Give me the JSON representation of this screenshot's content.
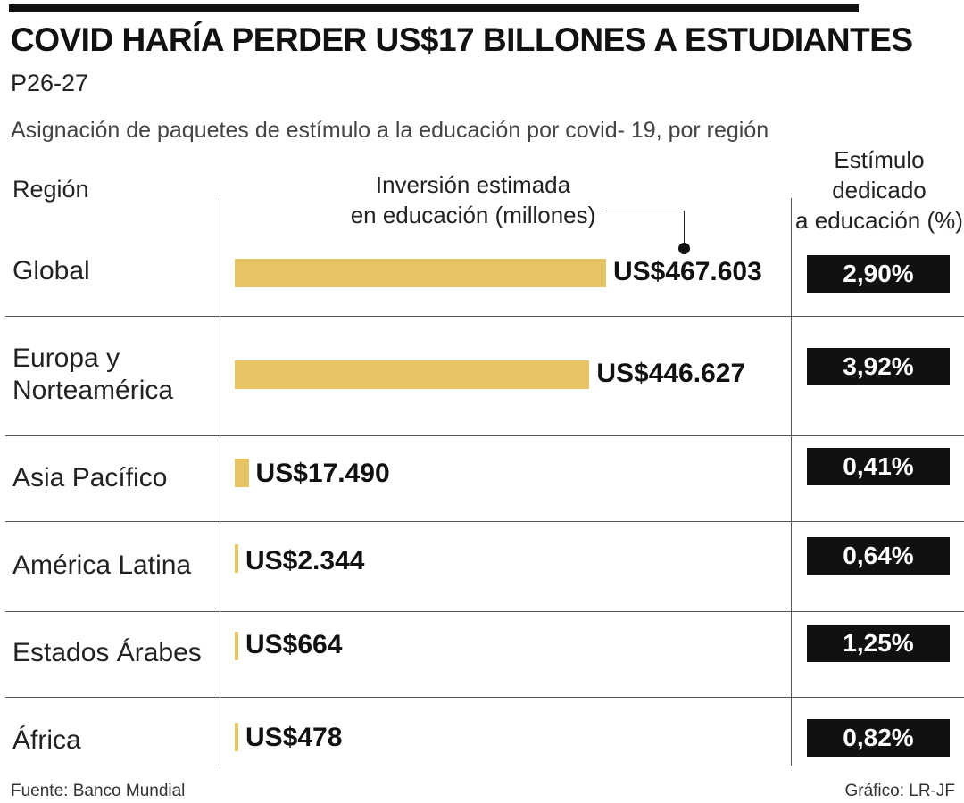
{
  "header": {
    "title": "COVID HARÍA PERDER US$17 BILLONES A ESTUDIANTES",
    "page_ref": "P26-27",
    "subtitle": "Asignación de paquetes de estímulo a la educación por covid- 19, por región"
  },
  "columns": {
    "region": "Región",
    "investment_line1": "Inversión estimada",
    "investment_line2": "en educación (millones)",
    "stimulus_line1": "Estímulo",
    "stimulus_line2": "dedicado",
    "stimulus_line3": "a educación (%)"
  },
  "rows": [
    {
      "region_line1": "Global",
      "region_line2": "",
      "value_label": "US$467.603",
      "pct_label": "2,90%"
    },
    {
      "region_line1": "Europa y",
      "region_line2": "Norteamérica",
      "value_label": "US$446.627",
      "pct_label": "3,92%"
    },
    {
      "region_line1": "Asia Pacífico",
      "region_line2": "",
      "value_label": "US$17.490",
      "pct_label": "0,41%"
    },
    {
      "region_line1": "América Latina",
      "region_line2": "",
      "value_label": "US$2.344",
      "pct_label": "0,64%"
    },
    {
      "region_line1": "Estados Árabes",
      "region_line2": "",
      "value_label": "US$664",
      "pct_label": "1,25%"
    },
    {
      "region_line1": "África",
      "region_line2": "",
      "value_label": "US$478",
      "pct_label": "0,82%"
    }
  ],
  "footer": {
    "source": "Fuente: Banco Mundial",
    "credit": "Gráfico: LR-JF"
  },
  "colors": {
    "bar": "#e6c463",
    "pct_box": "#111111",
    "pct_text": "#ffffff",
    "rule": "#111111"
  },
  "chart_data": {
    "type": "bar",
    "orientation": "horizontal",
    "title": "COVID HARÍA PERDER US$17 BILLONES A ESTUDIANTES",
    "subtitle": "Asignación de paquetes de estímulo a la educación por covid- 19, por región",
    "categories": [
      "Global",
      "Europa y Norteamérica",
      "Asia Pacífico",
      "América Latina",
      "Estados Árabes",
      "África"
    ],
    "series": [
      {
        "name": "Inversión estimada en educación (millones)",
        "values": [
          467603,
          446627,
          17490,
          2344,
          664,
          478
        ]
      },
      {
        "name": "Estímulo dedicado a educación (%)",
        "values": [
          2.9,
          3.92,
          0.41,
          0.64,
          1.25,
          0.82
        ]
      }
    ],
    "xlim": [
      0,
      467603
    ],
    "grid": false,
    "legend": "none"
  }
}
